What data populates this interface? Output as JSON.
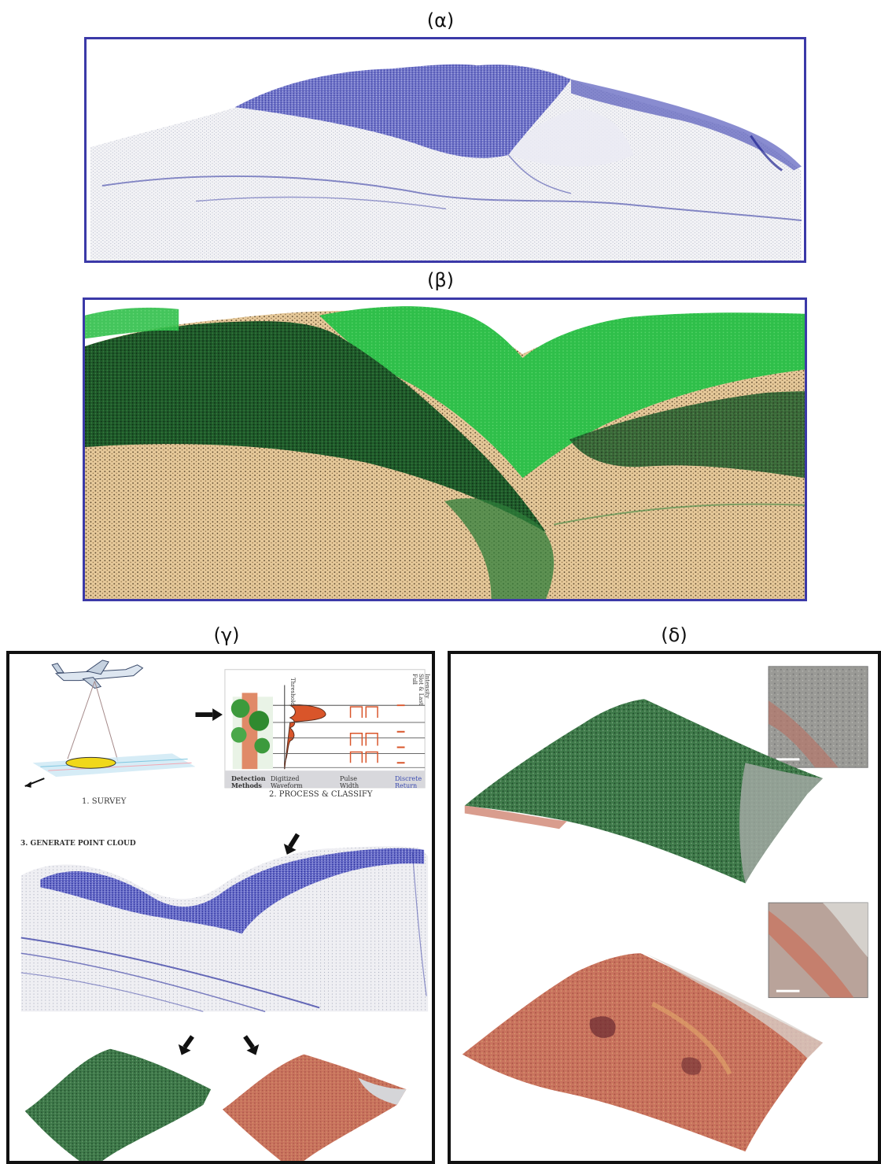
{
  "labels": {
    "a": "(α)",
    "b": "(β)",
    "c": "(γ)",
    "d": "(δ)"
  },
  "workflow": {
    "step1": "1. SURVEY",
    "step2": "2. PROCESS & CLASSIFY",
    "step3": "3. GENERATE POINT CLOUD",
    "detection_methods": "Detection Methods",
    "digitized_waveform": "Digitized Waveform",
    "pulse_width": "Pulse Width",
    "discrete_return": "Discrete Return",
    "chart_side_labels": [
      "Intensity",
      "Slot & Last",
      "Full"
    ],
    "threshold": "Threshold"
  },
  "colors": {
    "frame_blue": "#3b39a8",
    "pointcloud_blue": "#2a2f9e",
    "vegetation_green": "#2fbf4a",
    "dark_green": "#1f5a2a",
    "terrain_tan": "#e6c99a",
    "terrain_red": "#c9735e"
  }
}
